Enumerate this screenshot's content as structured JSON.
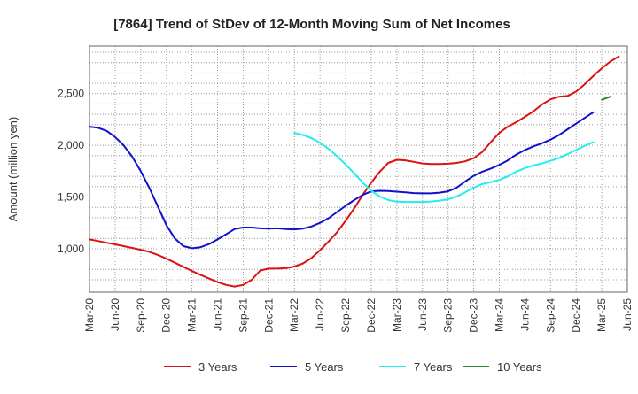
{
  "chart_data": {
    "type": "line",
    "title": "[7864]  Trend of StDev of 12-Month Moving Sum of Net Incomes",
    "ylabel": "Amount (million yen)",
    "xlabel": "",
    "ylim": [
      580,
      2960
    ],
    "x_ticks": [
      "Mar-20",
      "Jun-20",
      "Sep-20",
      "Dec-20",
      "Mar-21",
      "Jun-21",
      "Sep-21",
      "Dec-21",
      "Mar-22",
      "Jun-22",
      "Sep-22",
      "Dec-22",
      "Mar-23",
      "Jun-23",
      "Sep-23",
      "Dec-23",
      "Mar-24",
      "Jun-24",
      "Sep-24",
      "Dec-24",
      "Mar-25",
      "Jun-25"
    ],
    "y_ticks": [
      {
        "value": 1000,
        "label": "1,000"
      },
      {
        "value": 1500,
        "label": "1,500"
      },
      {
        "value": 2000,
        "label": "2,000"
      },
      {
        "value": 2500,
        "label": "2,500"
      }
    ],
    "grid": true,
    "legend_position": "bottom",
    "series": [
      {
        "name": "3 Years",
        "color": "#dd1111",
        "start_index": 0,
        "values": [
          1090,
          1075,
          1058,
          1042,
          1025,
          1008,
          990,
          970,
          940,
          905,
          865,
          825,
          785,
          748,
          712,
          678,
          650,
          635,
          650,
          700,
          790,
          808,
          808,
          812,
          828,
          858,
          910,
          985,
          1070,
          1160,
          1270,
          1390,
          1520,
          1640,
          1745,
          1830,
          1860,
          1855,
          1840,
          1825,
          1820,
          1820,
          1822,
          1830,
          1845,
          1875,
          1935,
          2030,
          2120,
          2180,
          2225,
          2275,
          2330,
          2395,
          2445,
          2470,
          2478,
          2520,
          2590,
          2670,
          2745,
          2810,
          2860
        ]
      },
      {
        "name": "5 Years",
        "color": "#1111cc",
        "start_index": 0,
        "values": [
          2180,
          2170,
          2140,
          2080,
          2000,
          1890,
          1750,
          1590,
          1410,
          1230,
          1100,
          1025,
          1005,
          1015,
          1045,
          1090,
          1140,
          1190,
          1205,
          1205,
          1197,
          1195,
          1197,
          1190,
          1187,
          1195,
          1215,
          1250,
          1295,
          1355,
          1415,
          1470,
          1520,
          1555,
          1560,
          1558,
          1552,
          1545,
          1538,
          1535,
          1535,
          1542,
          1555,
          1590,
          1650,
          1705,
          1745,
          1775,
          1810,
          1855,
          1910,
          1955,
          1990,
          2020,
          2055,
          2100,
          2155,
          2210,
          2265,
          2320
        ]
      },
      {
        "name": "7 Years",
        "color": "#22eeee",
        "start_index": 24,
        "values": [
          2120,
          2100,
          2070,
          2025,
          1965,
          1895,
          1815,
          1730,
          1640,
          1560,
          1505,
          1470,
          1455,
          1452,
          1452,
          1452,
          1457,
          1465,
          1478,
          1505,
          1545,
          1590,
          1625,
          1645,
          1665,
          1700,
          1745,
          1780,
          1805,
          1825,
          1850,
          1878,
          1915,
          1955,
          1995,
          2030
        ]
      },
      {
        "name": "10 Years",
        "color": "#2a8a2a",
        "start_index": 60,
        "values": [
          2440,
          2470
        ]
      }
    ]
  }
}
